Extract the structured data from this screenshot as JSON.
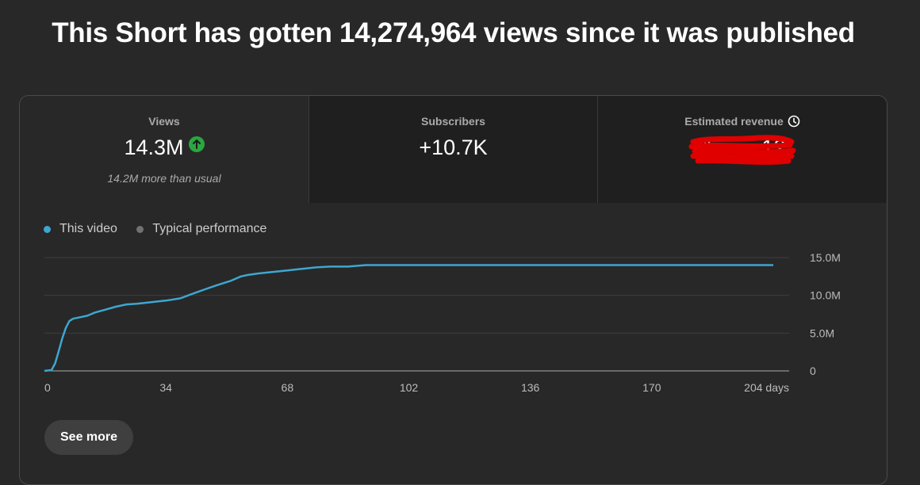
{
  "headline": "This Short has gotten 14,274,964 views since it was published",
  "metrics": {
    "views": {
      "label": "Views",
      "value": "14.3M",
      "sub": "14.2M more than usual",
      "trend_icon": "arrow-up-icon"
    },
    "subscribers": {
      "label": "Subscribers",
      "value": "+10.7K"
    },
    "revenue": {
      "label": "Estimated revenue",
      "value": "$",
      "value_tail": "12",
      "icon": "clock-icon",
      "redacted": true
    }
  },
  "colors": {
    "this_video": "#3ea6d0",
    "typical": "#717171",
    "up_badge": "#2ba640",
    "redaction": "#e00000"
  },
  "legend": {
    "this_video": "This video",
    "typical": "Typical performance"
  },
  "chart_data": {
    "type": "line",
    "x_label_unit": "days",
    "xticks": [
      "0",
      "34",
      "68",
      "102",
      "136",
      "170",
      "204 days"
    ],
    "yticks": [
      "0",
      "5.0M",
      "10.0M",
      "15.0M"
    ],
    "xlim": [
      0,
      204
    ],
    "ylim": [
      0,
      15000000
    ],
    "grid": true,
    "legend_position": "top-left",
    "series": [
      {
        "name": "This video",
        "x": [
          0,
          2,
          3,
          4,
          5,
          6,
          7,
          8,
          10,
          12,
          14,
          17,
          20,
          23,
          26,
          30,
          34,
          38,
          42,
          45,
          48,
          52,
          55,
          57,
          60,
          64,
          68,
          72,
          76,
          80,
          85,
          90,
          100,
          120,
          150,
          180,
          204
        ],
        "y": [
          0,
          100000,
          1000000,
          2600000,
          4300000,
          5700000,
          6600000,
          6900000,
          7100000,
          7300000,
          7700000,
          8100000,
          8500000,
          8800000,
          8900000,
          9100000,
          9300000,
          9600000,
          10300000,
          10800000,
          11300000,
          11900000,
          12500000,
          12700000,
          12900000,
          13100000,
          13300000,
          13500000,
          13700000,
          13800000,
          13800000,
          14000000,
          14000000,
          14000000,
          14000000,
          14000000,
          14000000
        ]
      }
    ]
  },
  "actions": {
    "see_more": "See more"
  }
}
